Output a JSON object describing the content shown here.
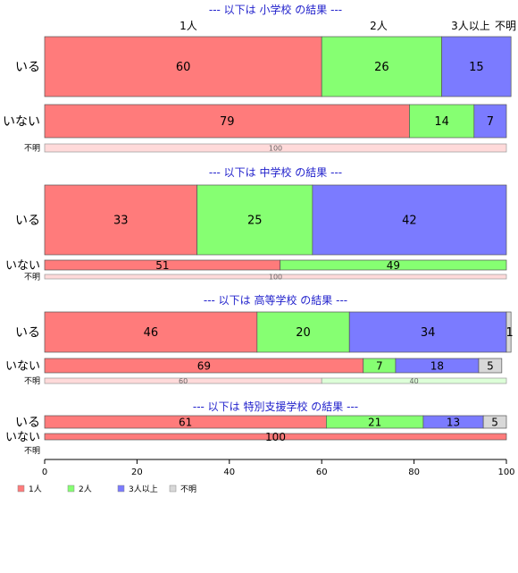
{
  "chart_data": {
    "type": "bar",
    "orientation": "horizontal",
    "stacked": "percent",
    "xlim": [
      0,
      100
    ],
    "x_ticks": [
      0,
      20,
      40,
      60,
      80,
      100
    ],
    "grid": false,
    "legend_position": "bottom-left",
    "categories": [
      "1人",
      "2人",
      "3人以上",
      "不明"
    ],
    "colors": {
      "1人": "#ff7b7b",
      "2人": "#86ff72",
      "3人以上": "#7b7bff",
      "不明": "#d8d8d8",
      "section_title": "#2222cc"
    },
    "top_labels": [
      "1人",
      "2人",
      "3人以上",
      "不明"
    ],
    "panels": [
      {
        "title": "--- 以下は 小学校 の結果 ---",
        "rows": [
          {
            "label": "いる",
            "values": [
              60,
              26,
              15,
              0
            ]
          },
          {
            "label": "いない",
            "values": [
              79,
              14,
              7,
              0
            ]
          },
          {
            "label": "不明",
            "values": [
              100,
              0,
              0,
              0
            ]
          }
        ]
      },
      {
        "title": "--- 以下は 中学校 の結果 ---",
        "rows": [
          {
            "label": "いる",
            "values": [
              33,
              25,
              42,
              0
            ]
          },
          {
            "label": "いない",
            "values": [
              51,
              49,
              0,
              0
            ]
          },
          {
            "label": "不明",
            "values": [
              100,
              0,
              0,
              0
            ]
          }
        ]
      },
      {
        "title": "--- 以下は 高等学校 の結果 ---",
        "rows": [
          {
            "label": "いる",
            "values": [
              46,
              20,
              34,
              1
            ]
          },
          {
            "label": "いない",
            "values": [
              69,
              7,
              18,
              5
            ]
          },
          {
            "label": "不明",
            "values": [
              60,
              40,
              0,
              0
            ]
          }
        ]
      },
      {
        "title": "--- 以下は 特別支援学校 の結果 ---",
        "rows": [
          {
            "label": "いる",
            "values": [
              61,
              21,
              13,
              5
            ]
          },
          {
            "label": "いない",
            "values": [
              100,
              0,
              0,
              0
            ]
          },
          {
            "label": "不明",
            "values": [
              0,
              0,
              0,
              0
            ]
          }
        ]
      }
    ]
  }
}
